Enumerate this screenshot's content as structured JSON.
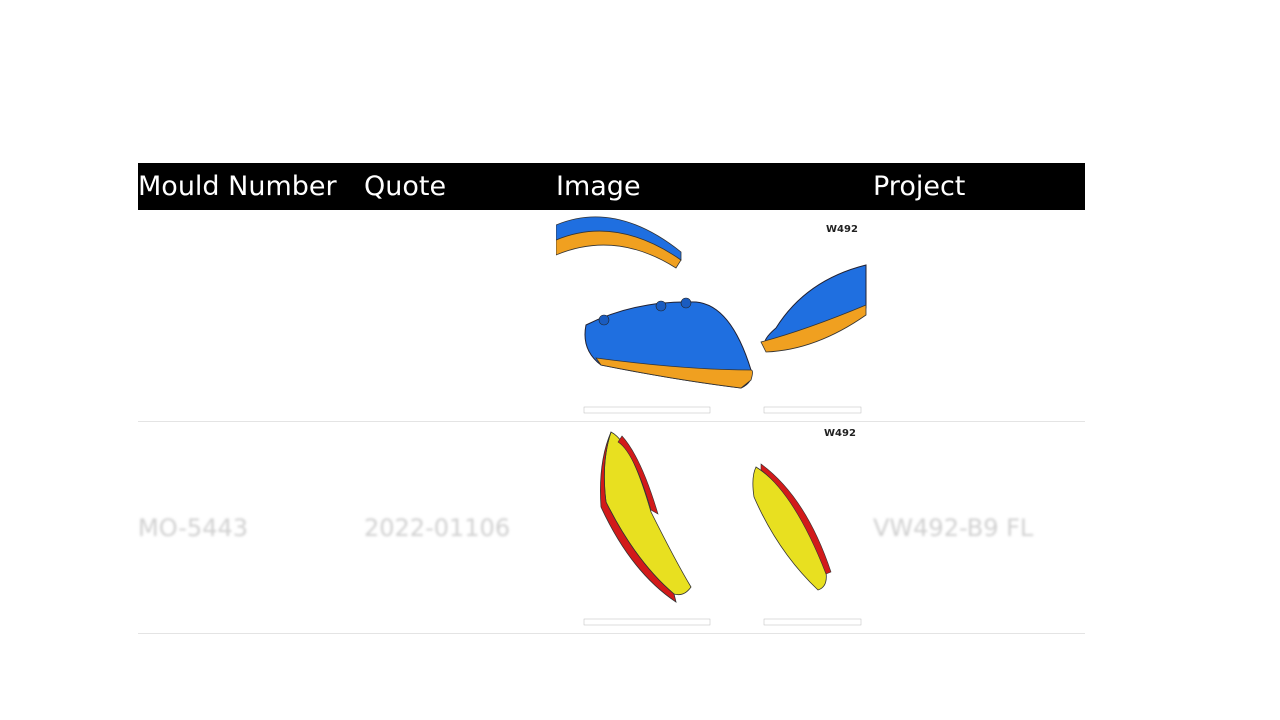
{
  "table": {
    "headers": [
      "Mould Number",
      "Quote",
      "Image",
      "Project"
    ],
    "rows": [
      {
        "mould_number": "",
        "quote": "",
        "image": {
          "label": "W492",
          "colors": [
            "#1f6fe0",
            "#f0a020"
          ],
          "icon": "part-cad-render"
        },
        "project": ""
      },
      {
        "mould_number": "MO-5443",
        "quote": "2022-01106",
        "image": {
          "label": "W492",
          "colors": [
            "#e8e020",
            "#d21a1a"
          ],
          "icon": "part-cad-render"
        },
        "project": "VW492-B9 FL"
      }
    ]
  }
}
